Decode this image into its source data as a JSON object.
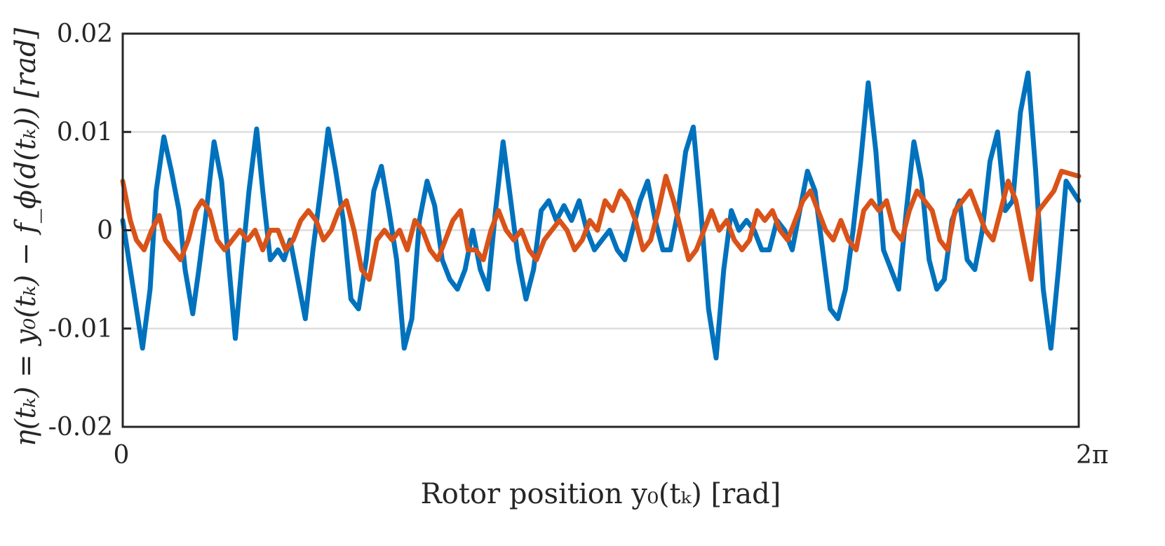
{
  "chart_data": {
    "type": "line",
    "title": "",
    "xlabel": "Rotor position y₀(tₖ) [rad]",
    "ylabel": "η(tₖ) = y₀(tₖ) − f_ϕ(d(tₖ)) [rad]",
    "xlim": [
      0,
      6.2832
    ],
    "ylim": [
      -0.02,
      0.02
    ],
    "x_tick_labels": [
      "0",
      "2π"
    ],
    "y_ticks": [
      -0.02,
      -0.01,
      0,
      0.01,
      0.02
    ],
    "y_tick_labels": [
      "-0.02",
      "-0.01",
      "0",
      "0.01",
      "0.02"
    ],
    "grid": "horizontal",
    "legend": "none",
    "series": [
      {
        "color": "#0072BD",
        "x": [
          0,
          0.05,
          0.09,
          0.13,
          0.18,
          0.22,
          0.27,
          0.32,
          0.37,
          0.41,
          0.46,
          0.5,
          0.55,
          0.6,
          0.65,
          0.7,
          0.74,
          0.78,
          0.83,
          0.88,
          0.92,
          0.97,
          1.02,
          1.06,
          1.1,
          1.15,
          1.2,
          1.25,
          1.3,
          1.35,
          1.4,
          1.45,
          1.5,
          1.55,
          1.6,
          1.65,
          1.7,
          1.75,
          1.8,
          1.85,
          1.9,
          1.95,
          2.0,
          2.05,
          2.1,
          2.15,
          2.2,
          2.25,
          2.3,
          2.35,
          2.4,
          2.45,
          2.5,
          2.55,
          2.6,
          2.65,
          2.7,
          2.75,
          2.8,
          2.85,
          2.9,
          2.95,
          3.0,
          3.05,
          3.1,
          3.15,
          3.2,
          3.25,
          3.3,
          3.35,
          3.4,
          3.45,
          3.5,
          3.55,
          3.6,
          3.65,
          3.7,
          3.75,
          3.8,
          3.85,
          3.9,
          3.95,
          4.0,
          4.05,
          4.1,
          4.15,
          4.2,
          4.25,
          4.3,
          4.35,
          4.4,
          4.45,
          4.5,
          4.55,
          4.6,
          4.65,
          4.7,
          4.75,
          4.8,
          4.85,
          4.9,
          4.95,
          5.0,
          5.05,
          5.1,
          5.15,
          5.2,
          5.25,
          5.3,
          5.35,
          5.4,
          5.45,
          5.5,
          5.55,
          5.6,
          5.65,
          5.7,
          5.75,
          5.8,
          5.85,
          5.9,
          5.95,
          6.0,
          6.05,
          6.1,
          6.15,
          6.2,
          6.2832
        ],
        "y": [
          0.001,
          -0.004,
          -0.008,
          -0.012,
          -0.006,
          0.004,
          0.0095,
          0.006,
          0.002,
          -0.004,
          -0.0085,
          -0.004,
          0.002,
          0.009,
          0.005,
          -0.004,
          -0.011,
          -0.004,
          0.004,
          0.0103,
          0.004,
          -0.003,
          -0.002,
          -0.003,
          -0.001,
          -0.005,
          -0.009,
          -0.002,
          0.004,
          0.0103,
          0.006,
          0.001,
          -0.007,
          -0.008,
          -0.003,
          0.004,
          0.0065,
          0.002,
          -0.003,
          -0.012,
          -0.009,
          0.001,
          0.005,
          0.0025,
          -0.003,
          -0.005,
          -0.006,
          -0.004,
          0.0,
          -0.004,
          -0.006,
          0.002,
          0.009,
          0.003,
          -0.003,
          -0.007,
          -0.004,
          0.002,
          0.003,
          0.001,
          0.0025,
          0.001,
          0.003,
          0.0,
          -0.002,
          -0.001,
          0.0,
          -0.002,
          -0.003,
          0.0,
          0.003,
          0.005,
          0.001,
          -0.002,
          -0.002,
          0.002,
          0.008,
          0.0105,
          0.002,
          -0.008,
          -0.013,
          -0.004,
          0.002,
          0.0,
          0.001,
          0.0,
          -0.002,
          -0.002,
          0.001,
          0.0,
          -0.002,
          0.002,
          0.006,
          0.004,
          -0.002,
          -0.008,
          -0.009,
          -0.006,
          0.0,
          0.007,
          0.015,
          0.008,
          -0.002,
          -0.004,
          -0.006,
          0.002,
          0.009,
          0.005,
          -0.003,
          -0.006,
          -0.005,
          0.001,
          0.003,
          -0.003,
          -0.004,
          0.0,
          0.007,
          0.01,
          0.002,
          0.003,
          0.012,
          0.016,
          0.006,
          -0.006,
          -0.012,
          -0.004,
          0.005,
          0.003
        ]
      },
      {
        "color": "#D95319",
        "x": [
          0,
          0.05,
          0.09,
          0.14,
          0.19,
          0.24,
          0.28,
          0.33,
          0.38,
          0.43,
          0.48,
          0.52,
          0.57,
          0.62,
          0.67,
          0.72,
          0.77,
          0.82,
          0.87,
          0.92,
          0.97,
          1.02,
          1.07,
          1.12,
          1.17,
          1.22,
          1.27,
          1.32,
          1.37,
          1.42,
          1.47,
          1.52,
          1.57,
          1.62,
          1.67,
          1.72,
          1.77,
          1.82,
          1.87,
          1.92,
          1.97,
          2.02,
          2.07,
          2.12,
          2.17,
          2.22,
          2.27,
          2.32,
          2.37,
          2.42,
          2.47,
          2.52,
          2.57,
          2.62,
          2.67,
          2.72,
          2.77,
          2.82,
          2.87,
          2.92,
          2.97,
          3.02,
          3.07,
          3.12,
          3.17,
          3.22,
          3.27,
          3.32,
          3.37,
          3.42,
          3.47,
          3.52,
          3.57,
          3.62,
          3.67,
          3.72,
          3.77,
          3.82,
          3.87,
          3.92,
          3.97,
          4.02,
          4.07,
          4.12,
          4.17,
          4.22,
          4.27,
          4.32,
          4.37,
          4.42,
          4.47,
          4.52,
          4.57,
          4.62,
          4.67,
          4.72,
          4.77,
          4.82,
          4.87,
          4.92,
          4.97,
          5.02,
          5.07,
          5.12,
          5.17,
          5.22,
          5.27,
          5.32,
          5.37,
          5.42,
          5.47,
          5.52,
          5.57,
          5.62,
          5.67,
          5.72,
          5.77,
          5.82,
          5.87,
          5.92,
          5.97,
          6.02,
          6.07,
          6.12,
          6.17,
          6.2832
        ],
        "y": [
          0.005,
          0.001,
          -0.001,
          -0.002,
          0.0,
          0.0015,
          -0.001,
          -0.002,
          -0.003,
          -0.001,
          0.002,
          0.003,
          0.002,
          -0.001,
          -0.002,
          -0.001,
          0.0,
          -0.001,
          0.0,
          -0.002,
          0.0,
          0.0,
          -0.002,
          -0.001,
          0.001,
          0.002,
          0.001,
          -0.001,
          0.0,
          0.002,
          0.003,
          0.0,
          -0.004,
          -0.005,
          -0.001,
          0.0,
          -0.001,
          0.0,
          -0.002,
          0.001,
          0.0,
          -0.002,
          -0.003,
          -0.001,
          0.001,
          0.002,
          -0.002,
          -0.002,
          -0.003,
          0.0,
          0.002,
          0.0,
          -0.001,
          0.0,
          -0.002,
          -0.003,
          -0.001,
          0.0,
          0.001,
          0.0,
          -0.002,
          -0.001,
          0.001,
          0.0,
          0.003,
          0.002,
          0.004,
          0.003,
          0.001,
          -0.002,
          -0.001,
          0.002,
          0.0055,
          0.003,
          0.0,
          -0.003,
          -0.002,
          0.0,
          0.002,
          0.0,
          0.001,
          -0.001,
          -0.002,
          -0.001,
          0.002,
          0.001,
          0.002,
          0.0,
          -0.001,
          0.001,
          0.003,
          0.004,
          0.002,
          0.0,
          -0.001,
          0.001,
          -0.001,
          -0.002,
          0.002,
          0.003,
          0.002,
          0.003,
          0.0,
          -0.001,
          0.002,
          0.004,
          0.003,
          0.002,
          -0.001,
          -0.002,
          0.002,
          0.003,
          0.004,
          0.002,
          0.0,
          -0.001,
          0.002,
          0.005,
          0.003,
          -0.001,
          -0.005,
          0.002,
          0.003,
          0.004,
          0.006,
          0.0055
        ]
      }
    ]
  }
}
